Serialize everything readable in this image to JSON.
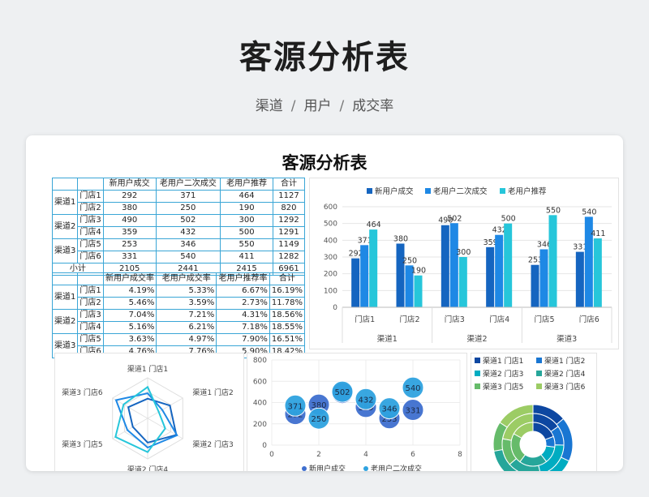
{
  "hero": {
    "title": "客源分析表",
    "subtitle": [
      "渠道",
      "用户",
      "成交率"
    ],
    "separator": "/"
  },
  "sheet": {
    "title": "客源分析表"
  },
  "table1": {
    "headers": [
      "新用户成交",
      "老用户二次成交",
      "老用户推荐",
      "合计"
    ],
    "channels": [
      "渠道1",
      "渠道2",
      "渠道3"
    ],
    "rows": [
      {
        "store": "门店1",
        "values": [
          "292",
          "371",
          "464",
          "1127"
        ]
      },
      {
        "store": "门店2",
        "values": [
          "380",
          "250",
          "190",
          "820"
        ]
      },
      {
        "store": "门店3",
        "values": [
          "490",
          "502",
          "300",
          "1292"
        ]
      },
      {
        "store": "门店4",
        "values": [
          "359",
          "432",
          "500",
          "1291"
        ]
      },
      {
        "store": "门店5",
        "values": [
          "253",
          "346",
          "550",
          "1149"
        ]
      },
      {
        "store": "门店6",
        "values": [
          "331",
          "540",
          "411",
          "1282"
        ]
      }
    ],
    "subtotal": {
      "label": "小计",
      "values": [
        "2105",
        "2441",
        "2415",
        "6961"
      ]
    }
  },
  "table2": {
    "headers": [
      "新用户成交率",
      "老用户成交率",
      "老用户推荐率",
      "合计"
    ],
    "channels": [
      "渠道1",
      "渠道2",
      "渠道3"
    ],
    "rows": [
      {
        "store": "门店1",
        "values": [
          "4.19%",
          "5.33%",
          "6.67%",
          "16.19%"
        ]
      },
      {
        "store": "门店2",
        "values": [
          "5.46%",
          "3.59%",
          "2.73%",
          "11.78%"
        ]
      },
      {
        "store": "门店3",
        "values": [
          "7.04%",
          "7.21%",
          "4.31%",
          "18.56%"
        ]
      },
      {
        "store": "门店4",
        "values": [
          "5.16%",
          "6.21%",
          "7.18%",
          "18.55%"
        ]
      },
      {
        "store": "门店5",
        "values": [
          "3.63%",
          "4.97%",
          "7.90%",
          "16.51%"
        ]
      },
      {
        "store": "门店6",
        "values": [
          "4.76%",
          "7.76%",
          "5.90%",
          "18.42%"
        ]
      }
    ]
  },
  "colors": {
    "series1": "#1565c0",
    "series2": "#1e88e5",
    "series3": "#26c6da",
    "border": "#3aa6d6"
  },
  "chart_data": [
    {
      "type": "bar",
      "series": [
        {
          "name": "新用户成交",
          "values": [
            292,
            380,
            490,
            359,
            253,
            331
          ]
        },
        {
          "name": "老用户二次成交",
          "values": [
            371,
            250,
            502,
            432,
            346,
            540
          ]
        },
        {
          "name": "老用户推荐",
          "values": [
            464,
            190,
            300,
            500,
            550,
            411
          ]
        }
      ],
      "categories": [
        "门店1",
        "门店2",
        "门店3",
        "门店4",
        "门店5",
        "门店6"
      ],
      "groups": [
        "渠道1",
        "渠道2",
        "渠道3"
      ],
      "ylim": [
        0,
        600
      ],
      "yticks": [
        "0",
        "100",
        "200",
        "300",
        "400",
        "500",
        "600"
      ],
      "legend": "top"
    },
    {
      "type": "radar",
      "categories": [
        "渠道1 门店1",
        "渠道1 门店2",
        "渠道2 门店3",
        "渠道2 门店4",
        "渠道3 门店5",
        "渠道3 门店6"
      ],
      "series": [
        {
          "values": [
            292,
            380,
            490,
            359,
            253,
            331
          ]
        },
        {
          "values": [
            371,
            250,
            502,
            432,
            346,
            540
          ]
        },
        {
          "values": [
            464,
            190,
            300,
            500,
            550,
            411
          ]
        }
      ],
      "rmax": 600
    },
    {
      "type": "scatter",
      "xlim": [
        0,
        8
      ],
      "ylim": [
        0,
        800
      ],
      "xticks": [
        "0",
        "2",
        "4",
        "6",
        "8"
      ],
      "yticks": [
        "0",
        "200",
        "400",
        "600",
        "800"
      ],
      "series": [
        {
          "name": "新用户成交",
          "points": [
            [
              1,
              292
            ],
            [
              2,
              380
            ],
            [
              3,
              490
            ],
            [
              4,
              359
            ],
            [
              5,
              253
            ],
            [
              6,
              331
            ]
          ]
        },
        {
          "name": "老用户二次成交",
          "points": [
            [
              1,
              371
            ],
            [
              2,
              250
            ],
            [
              3,
              502
            ],
            [
              4,
              432
            ],
            [
              5,
              346
            ],
            [
              6,
              540
            ]
          ]
        }
      ],
      "legend": "bottom"
    },
    {
      "type": "pie",
      "legend_entries": [
        "渠道1 门店1",
        "渠道1 门店2",
        "渠道2 门店3",
        "渠道2 门店4",
        "渠道3 门店5",
        "渠道3 门店6"
      ],
      "legend_colors": [
        "#0d47a1",
        "#1976d2",
        "#00acc1",
        "#26a69a",
        "#66bb6a",
        "#9ccc65"
      ],
      "rings": [
        {
          "values": [
            292,
            380,
            490,
            359,
            253,
            331
          ]
        },
        {
          "values": [
            371,
            250,
            502,
            432,
            346,
            540
          ]
        },
        {
          "values": [
            464,
            190,
            300,
            500,
            550,
            411
          ]
        }
      ]
    }
  ]
}
